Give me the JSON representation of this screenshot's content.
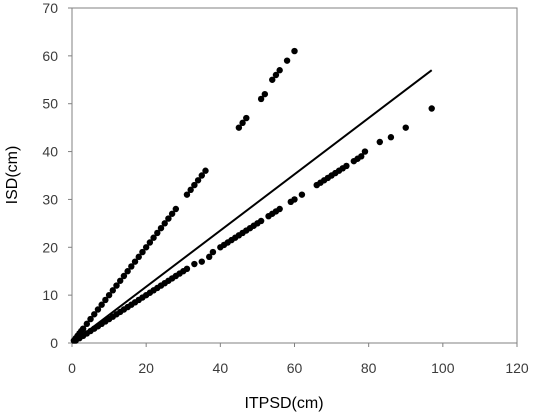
{
  "chart_data": {
    "type": "scatter",
    "xlabel": "ITPSD(cm)",
    "ylabel": "ISD(cm)",
    "xlim": [
      0,
      120
    ],
    "ylim": [
      0,
      70
    ],
    "x_ticks": [
      0,
      20,
      40,
      60,
      80,
      100,
      120
    ],
    "y_ticks": [
      0,
      10,
      20,
      30,
      40,
      50,
      60,
      70
    ],
    "grid": false,
    "legend": "none",
    "colors": {
      "points": "#000000",
      "line": "#000000",
      "axes": "#808080"
    },
    "series": [
      {
        "type": "scatter",
        "points": [
          [
            0.5,
            0.5
          ],
          [
            1,
            1
          ],
          [
            1.5,
            1.5
          ],
          [
            2,
            2
          ],
          [
            2.5,
            2.5
          ],
          [
            3,
            3
          ],
          [
            4,
            4
          ],
          [
            5,
            5
          ],
          [
            6,
            6
          ],
          [
            7,
            7
          ],
          [
            8,
            8
          ],
          [
            9,
            9
          ],
          [
            10,
            10
          ],
          [
            11,
            11
          ],
          [
            12,
            12
          ],
          [
            13,
            13
          ],
          [
            14,
            14
          ],
          [
            15,
            15
          ],
          [
            16,
            16
          ],
          [
            17,
            17
          ],
          [
            18,
            18
          ],
          [
            19,
            19
          ],
          [
            20,
            20
          ],
          [
            21,
            21
          ],
          [
            22,
            22
          ],
          [
            23,
            23
          ],
          [
            24,
            24
          ],
          [
            25,
            25
          ],
          [
            26,
            26
          ],
          [
            27,
            27
          ],
          [
            28,
            28
          ],
          [
            31,
            31
          ],
          [
            32,
            32
          ],
          [
            33,
            33
          ],
          [
            34,
            34
          ],
          [
            35,
            35
          ],
          [
            36,
            36
          ],
          [
            45,
            45
          ],
          [
            46,
            46
          ],
          [
            47,
            47
          ],
          [
            51,
            51
          ],
          [
            52,
            52
          ],
          [
            54,
            55
          ],
          [
            55,
            56
          ],
          [
            56,
            57
          ],
          [
            58,
            59
          ],
          [
            60,
            61
          ]
        ]
      },
      {
        "type": "scatter",
        "points": [
          [
            1,
            0.5
          ],
          [
            2,
            1
          ],
          [
            3,
            1.5
          ],
          [
            4,
            2
          ],
          [
            5,
            2.5
          ],
          [
            6,
            3
          ],
          [
            7,
            3.5
          ],
          [
            8,
            4
          ],
          [
            9,
            4.5
          ],
          [
            10,
            5
          ],
          [
            11,
            5.5
          ],
          [
            12,
            6
          ],
          [
            13,
            6.5
          ],
          [
            14,
            7
          ],
          [
            15,
            7.5
          ],
          [
            16,
            8
          ],
          [
            17,
            8.5
          ],
          [
            18,
            9
          ],
          [
            19,
            9.5
          ],
          [
            20,
            10
          ],
          [
            21,
            10.5
          ],
          [
            22,
            11
          ],
          [
            23,
            11.5
          ],
          [
            24,
            12
          ],
          [
            25,
            12.5
          ],
          [
            26,
            13
          ],
          [
            27,
            13.5
          ],
          [
            28,
            14
          ],
          [
            29,
            14.5
          ],
          [
            30,
            15
          ],
          [
            31,
            15.5
          ],
          [
            33,
            16.5
          ],
          [
            35,
            17
          ],
          [
            37,
            18
          ],
          [
            38,
            19
          ],
          [
            40,
            20
          ],
          [
            41,
            20.5
          ],
          [
            42,
            21
          ],
          [
            43,
            21.5
          ],
          [
            44,
            22
          ],
          [
            45,
            22.5
          ],
          [
            46,
            23
          ],
          [
            47,
            23.5
          ],
          [
            48,
            24
          ],
          [
            49,
            24.5
          ],
          [
            50,
            25
          ],
          [
            51,
            25.5
          ],
          [
            53,
            26.5
          ],
          [
            54,
            27
          ],
          [
            55,
            27.5
          ],
          [
            56,
            28
          ],
          [
            59,
            29.5
          ],
          [
            60,
            30
          ],
          [
            62,
            31
          ],
          [
            66,
            33
          ],
          [
            67,
            33.5
          ],
          [
            68,
            34
          ],
          [
            69,
            34.5
          ],
          [
            70,
            35
          ],
          [
            71,
            35.5
          ],
          [
            72,
            36
          ],
          [
            73,
            36.5
          ],
          [
            74,
            37
          ],
          [
            76,
            38
          ],
          [
            77,
            38.5
          ],
          [
            78,
            39
          ],
          [
            79,
            40
          ],
          [
            83,
            42
          ],
          [
            86,
            43
          ],
          [
            90,
            45
          ],
          [
            97,
            49
          ]
        ]
      },
      {
        "type": "line",
        "points": [
          [
            0,
            0
          ],
          [
            97,
            57
          ]
        ]
      }
    ]
  }
}
